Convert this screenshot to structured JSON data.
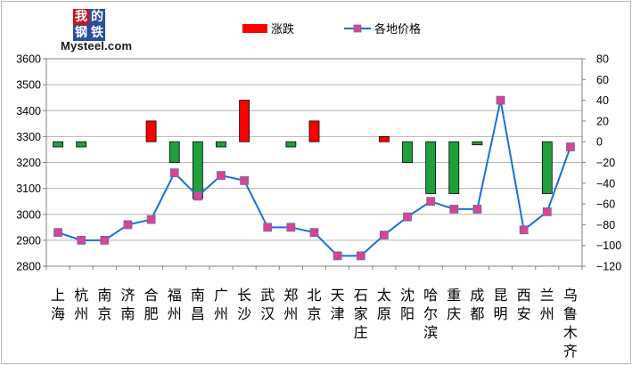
{
  "logo": {
    "chars": [
      "我",
      "的",
      "钢",
      "铁"
    ],
    "text": "Mysteel.com",
    "char_colors": [
      "#c8141e",
      "#2a4f9e",
      "#2a4f9e",
      "#2a4f9e"
    ]
  },
  "chart_data": {
    "type": "bar",
    "title": "",
    "categories": [
      "上海",
      "杭州",
      "南京",
      "济南",
      "合肥",
      "福州",
      "南昌",
      "广州",
      "长沙",
      "武汉",
      "郑州",
      "北京",
      "天津",
      "石家庄",
      "太原",
      "沈阳",
      "哈尔滨",
      "重庆",
      "成都",
      "昆明",
      "西安",
      "兰州",
      "乌鲁木齐"
    ],
    "series": [
      {
        "name": "涨跌",
        "type": "bar",
        "axis": "right",
        "color_up": "#ff0000",
        "color_down": "#1fa03c",
        "values": [
          -5,
          -5,
          0,
          0,
          20,
          -20,
          -55,
          -5,
          40,
          0,
          -5,
          20,
          0,
          0,
          5,
          -20,
          -50,
          -50,
          -3,
          0,
          0,
          -50,
          0
        ]
      },
      {
        "name": "各地价格",
        "type": "line",
        "axis": "left",
        "color": "#1a6fd8",
        "marker_color": "#d8448f",
        "values": [
          2930,
          2900,
          2900,
          2960,
          2980,
          3160,
          3070,
          3150,
          3130,
          2950,
          2950,
          2930,
          2840,
          2840,
          2920,
          2990,
          3050,
          3020,
          3020,
          3440,
          2940,
          3010,
          3260
        ]
      }
    ],
    "y_left": {
      "min": 2800,
      "max": 3600,
      "step": 100,
      "ticks": [
        "2800",
        "2900",
        "3000",
        "3100",
        "3200",
        "3300",
        "3400",
        "3500",
        "3600"
      ]
    },
    "y_right": {
      "min": -120,
      "max": 80,
      "step": 20,
      "ticks": [
        "−120",
        "−100",
        "−80",
        "−60",
        "−40",
        "−20",
        "0",
        "20",
        "40",
        "60",
        "80"
      ]
    },
    "legend": {
      "position": "top-center",
      "items": [
        "涨跌",
        "各地价格"
      ]
    },
    "grid": true
  }
}
